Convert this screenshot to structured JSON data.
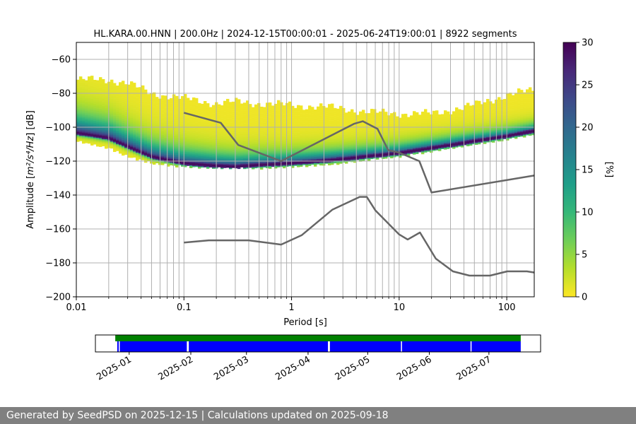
{
  "chart_data": {
    "type": "heatmap",
    "title": "HL.KARA.00.HNN | 200.0Hz | 2024-12-15T00:00:01 - 2025-06-24T19:00:01 | 8922 segments",
    "xlabel": "Period [s]",
    "ylabel_prefix": "Amplitude [",
    "ylabel_units": "m²/s⁴/Hz",
    "ylabel_suffix": "] [dB]",
    "xscale": "log",
    "xlim": [
      0.01,
      180
    ],
    "ylim": [
      -200,
      -50
    ],
    "x_ticks": [
      {
        "v": 0.01,
        "label": "0.01"
      },
      {
        "v": 0.1,
        "label": "0.1"
      },
      {
        "v": 1,
        "label": "1"
      },
      {
        "v": 10,
        "label": "10"
      },
      {
        "v": 100,
        "label": "100"
      }
    ],
    "y_ticks": [
      {
        "v": -60,
        "label": "−60"
      },
      {
        "v": -80,
        "label": "−80"
      },
      {
        "v": -100,
        "label": "−100"
      },
      {
        "v": -120,
        "label": "−120"
      },
      {
        "v": -140,
        "label": "−140"
      },
      {
        "v": -160,
        "label": "−160"
      },
      {
        "v": -180,
        "label": "−180"
      },
      {
        "v": -200,
        "label": "−200"
      }
    ],
    "grid": true,
    "colorbar": {
      "label": "[%]",
      "min": 0,
      "max": 30,
      "ticks": [
        {
          "v": 0,
          "label": "0"
        },
        {
          "v": 5,
          "label": "5"
        },
        {
          "v": 10,
          "label": "10"
        },
        {
          "v": 15,
          "label": "15"
        },
        {
          "v": 20,
          "label": "20"
        },
        {
          "v": 25,
          "label": "25"
        },
        {
          "v": 30,
          "label": "30"
        }
      ],
      "colormap": "viridis_r",
      "stops": [
        "#fde725",
        "#b5de2b",
        "#6ece58",
        "#35b779",
        "#1f9e89",
        "#26828e",
        "#31688e",
        "#3e4989",
        "#482878",
        "#440154"
      ]
    },
    "density": {
      "mode_curve": {
        "periods": [
          0.01,
          0.02,
          0.03,
          0.05,
          0.1,
          0.2,
          0.3,
          0.5,
          1,
          2,
          3,
          5,
          10,
          20,
          50,
          100,
          180
        ],
        "db": [
          -103,
          -106,
          -111,
          -117,
          -121,
          -122.5,
          -123,
          -122,
          -121,
          -119.5,
          -118.5,
          -117,
          -115,
          -112,
          -108,
          -105,
          -102
        ]
      },
      "upper_edge_db": [
        -72,
        -72,
        -74,
        -80,
        -83,
        -86,
        -85,
        -86,
        -87,
        -88,
        -89,
        -91,
        -92,
        -92,
        -87,
        -81,
        -78
      ],
      "lower_edge_db": [
        -108,
        -112,
        -117,
        -121,
        -123,
        -124,
        -124,
        -124,
        -123,
        -122,
        -121,
        -119,
        -117,
        -114,
        -110,
        -107,
        -104
      ],
      "max_percent": 30
    },
    "series": [
      {
        "name": "high noise model",
        "color": "#666666",
        "x": [
          0.1,
          0.22,
          0.32,
          0.8,
          3.8,
          4.6,
          6.3,
          7.9,
          10,
          15.4,
          20,
          180
        ],
        "y": [
          -91.5,
          -97.4,
          -110.5,
          -120,
          -98,
          -96.5,
          -101,
          -113.5,
          -115,
          -120,
          -138.5,
          -128.5
        ]
      },
      {
        "name": "low noise model",
        "color": "#666666",
        "x": [
          0.1,
          0.17,
          0.4,
          0.8,
          1.24,
          2.4,
          4.3,
          5.0,
          6.0,
          10,
          12,
          15.6,
          21.9,
          31.6,
          45,
          70,
          101,
          154,
          180
        ],
        "y": [
          -168,
          -166.7,
          -166.7,
          -169.2,
          -163.7,
          -148.6,
          -141.1,
          -141.1,
          -149,
          -163.2,
          -166.2,
          -162.1,
          -177.5,
          -185,
          -187.5,
          -187.5,
          -185,
          -185,
          -185.7
        ]
      }
    ],
    "timeline": {
      "xlim_days": [
        0,
        224
      ],
      "coverage_green": [
        [
          10,
          214
        ]
      ],
      "coverage_blue": [
        [
          11,
          46
        ],
        [
          47,
          117
        ],
        [
          118,
          214
        ]
      ],
      "gap_days": [
        12,
        46.5,
        117.5,
        154,
        189
      ],
      "ticks": [
        {
          "v": 17,
          "label": "2025-01"
        },
        {
          "v": 48,
          "label": "2025-02"
        },
        {
          "v": 76,
          "label": "2025-03"
        },
        {
          "v": 107,
          "label": "2025-04"
        },
        {
          "v": 137,
          "label": "2025-05"
        },
        {
          "v": 168,
          "label": "2025-06"
        },
        {
          "v": 198,
          "label": "2025-07"
        }
      ]
    }
  },
  "footer": {
    "text": "Generated by SeedPSD on 2025-12-15 | Calculations updated on 2025-09-18"
  }
}
